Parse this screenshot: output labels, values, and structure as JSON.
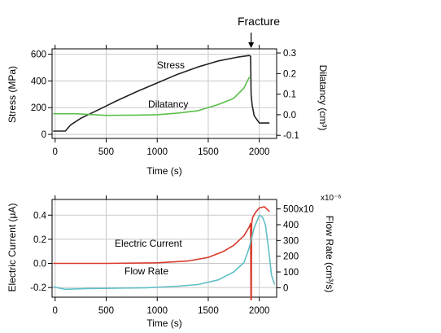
{
  "chart_data": [
    {
      "type": "line",
      "annotation": "Fracture",
      "fracture_x": 1920,
      "xlabel": "Time (s)",
      "ylabel": "Stress (MPa)",
      "y2label": "Dilatancy (cm³)",
      "xlim": [
        -30,
        2170
      ],
      "ylim": [
        -30,
        640
      ],
      "y2lim": [
        -0.115,
        0.32
      ],
      "x_ticks": [
        0,
        500,
        1000,
        1500,
        2000
      ],
      "x_tick_labels": [
        "0",
        "500",
        "1000",
        "1500",
        "2000"
      ],
      "y_ticks": [
        0,
        200,
        400,
        600
      ],
      "y_tick_labels": [
        "0",
        "200",
        "400",
        "600"
      ],
      "y2_ticks": [
        -0.1,
        0.0,
        0.1,
        0.2,
        0.3
      ],
      "y2_tick_labels": [
        "-0.1",
        "0.0",
        "0.1",
        "0.2",
        "0.3"
      ],
      "grid": true,
      "series": [
        {
          "name": "Stress",
          "axis": "left",
          "color": "#222222",
          "x": [
            -20,
            100,
            150,
            250,
            400,
            600,
            800,
            1000,
            1200,
            1400,
            1600,
            1800,
            1900,
            1915,
            1920,
            1930,
            1950,
            2000,
            2100
          ],
          "y": [
            25,
            25,
            70,
            120,
            175,
            250,
            320,
            385,
            450,
            505,
            550,
            580,
            590,
            585,
            300,
            220,
            140,
            85,
            85
          ]
        },
        {
          "name": "Dilatancy",
          "axis": "right",
          "color": "#5cc04c",
          "x": [
            -20,
            200,
            500,
            800,
            1000,
            1200,
            1400,
            1600,
            1750,
            1850,
            1900,
            1915
          ],
          "y": [
            0.005,
            0.005,
            -0.003,
            -0.002,
            0.0,
            0.008,
            0.02,
            0.05,
            0.08,
            0.13,
            0.18,
            0.18
          ]
        }
      ]
    },
    {
      "type": "line",
      "xlabel": "Time (s)",
      "ylabel": "Electric Current (μA)",
      "y2label": "Flow Rate (cm³/s)",
      "y2_exponent": "x10⁻⁶",
      "xlim": [
        -30,
        2170
      ],
      "ylim": [
        -0.28,
        0.53
      ],
      "y2lim": [
        -60,
        560
      ],
      "x_ticks": [
        0,
        500,
        1000,
        1500,
        2000
      ],
      "x_tick_labels": [
        "0",
        "500",
        "1000",
        "1500",
        "2000"
      ],
      "y_ticks": [
        -0.2,
        0.0,
        0.2,
        0.4
      ],
      "y_tick_labels": [
        "-0.2",
        "0.0",
        "0.2",
        "0.4"
      ],
      "y2_ticks": [
        0,
        100,
        200,
        300,
        400,
        500
      ],
      "y2_tick_labels": [
        "0",
        "100",
        "200",
        "300",
        "400",
        "500x10"
      ],
      "grid": true,
      "series": [
        {
          "name": "Electric Current",
          "axis": "left",
          "color": "#d93a2b",
          "x": [
            -20,
            500,
            1000,
            1300,
            1500,
            1650,
            1750,
            1850,
            1900,
            1915,
            1918,
            1922,
            1925,
            1935,
            1960,
            2000,
            2050,
            2100
          ],
          "y": [
            0.0,
            0.0,
            0.005,
            0.02,
            0.05,
            0.1,
            0.15,
            0.23,
            0.3,
            0.33,
            -0.3,
            -0.3,
            0.33,
            0.38,
            0.42,
            0.46,
            0.47,
            0.43
          ]
        },
        {
          "name": "Flow Rate",
          "axis": "right",
          "color": "#5fbfc6",
          "x": [
            -20,
            100,
            300,
            600,
            900,
            1200,
            1400,
            1600,
            1750,
            1850,
            1900,
            1950,
            2000,
            2030,
            2060,
            2090,
            2120,
            2150
          ],
          "y": [
            5,
            -10,
            -5,
            -3,
            0,
            10,
            20,
            50,
            100,
            160,
            250,
            380,
            460,
            450,
            400,
            250,
            80,
            20
          ]
        }
      ]
    }
  ]
}
